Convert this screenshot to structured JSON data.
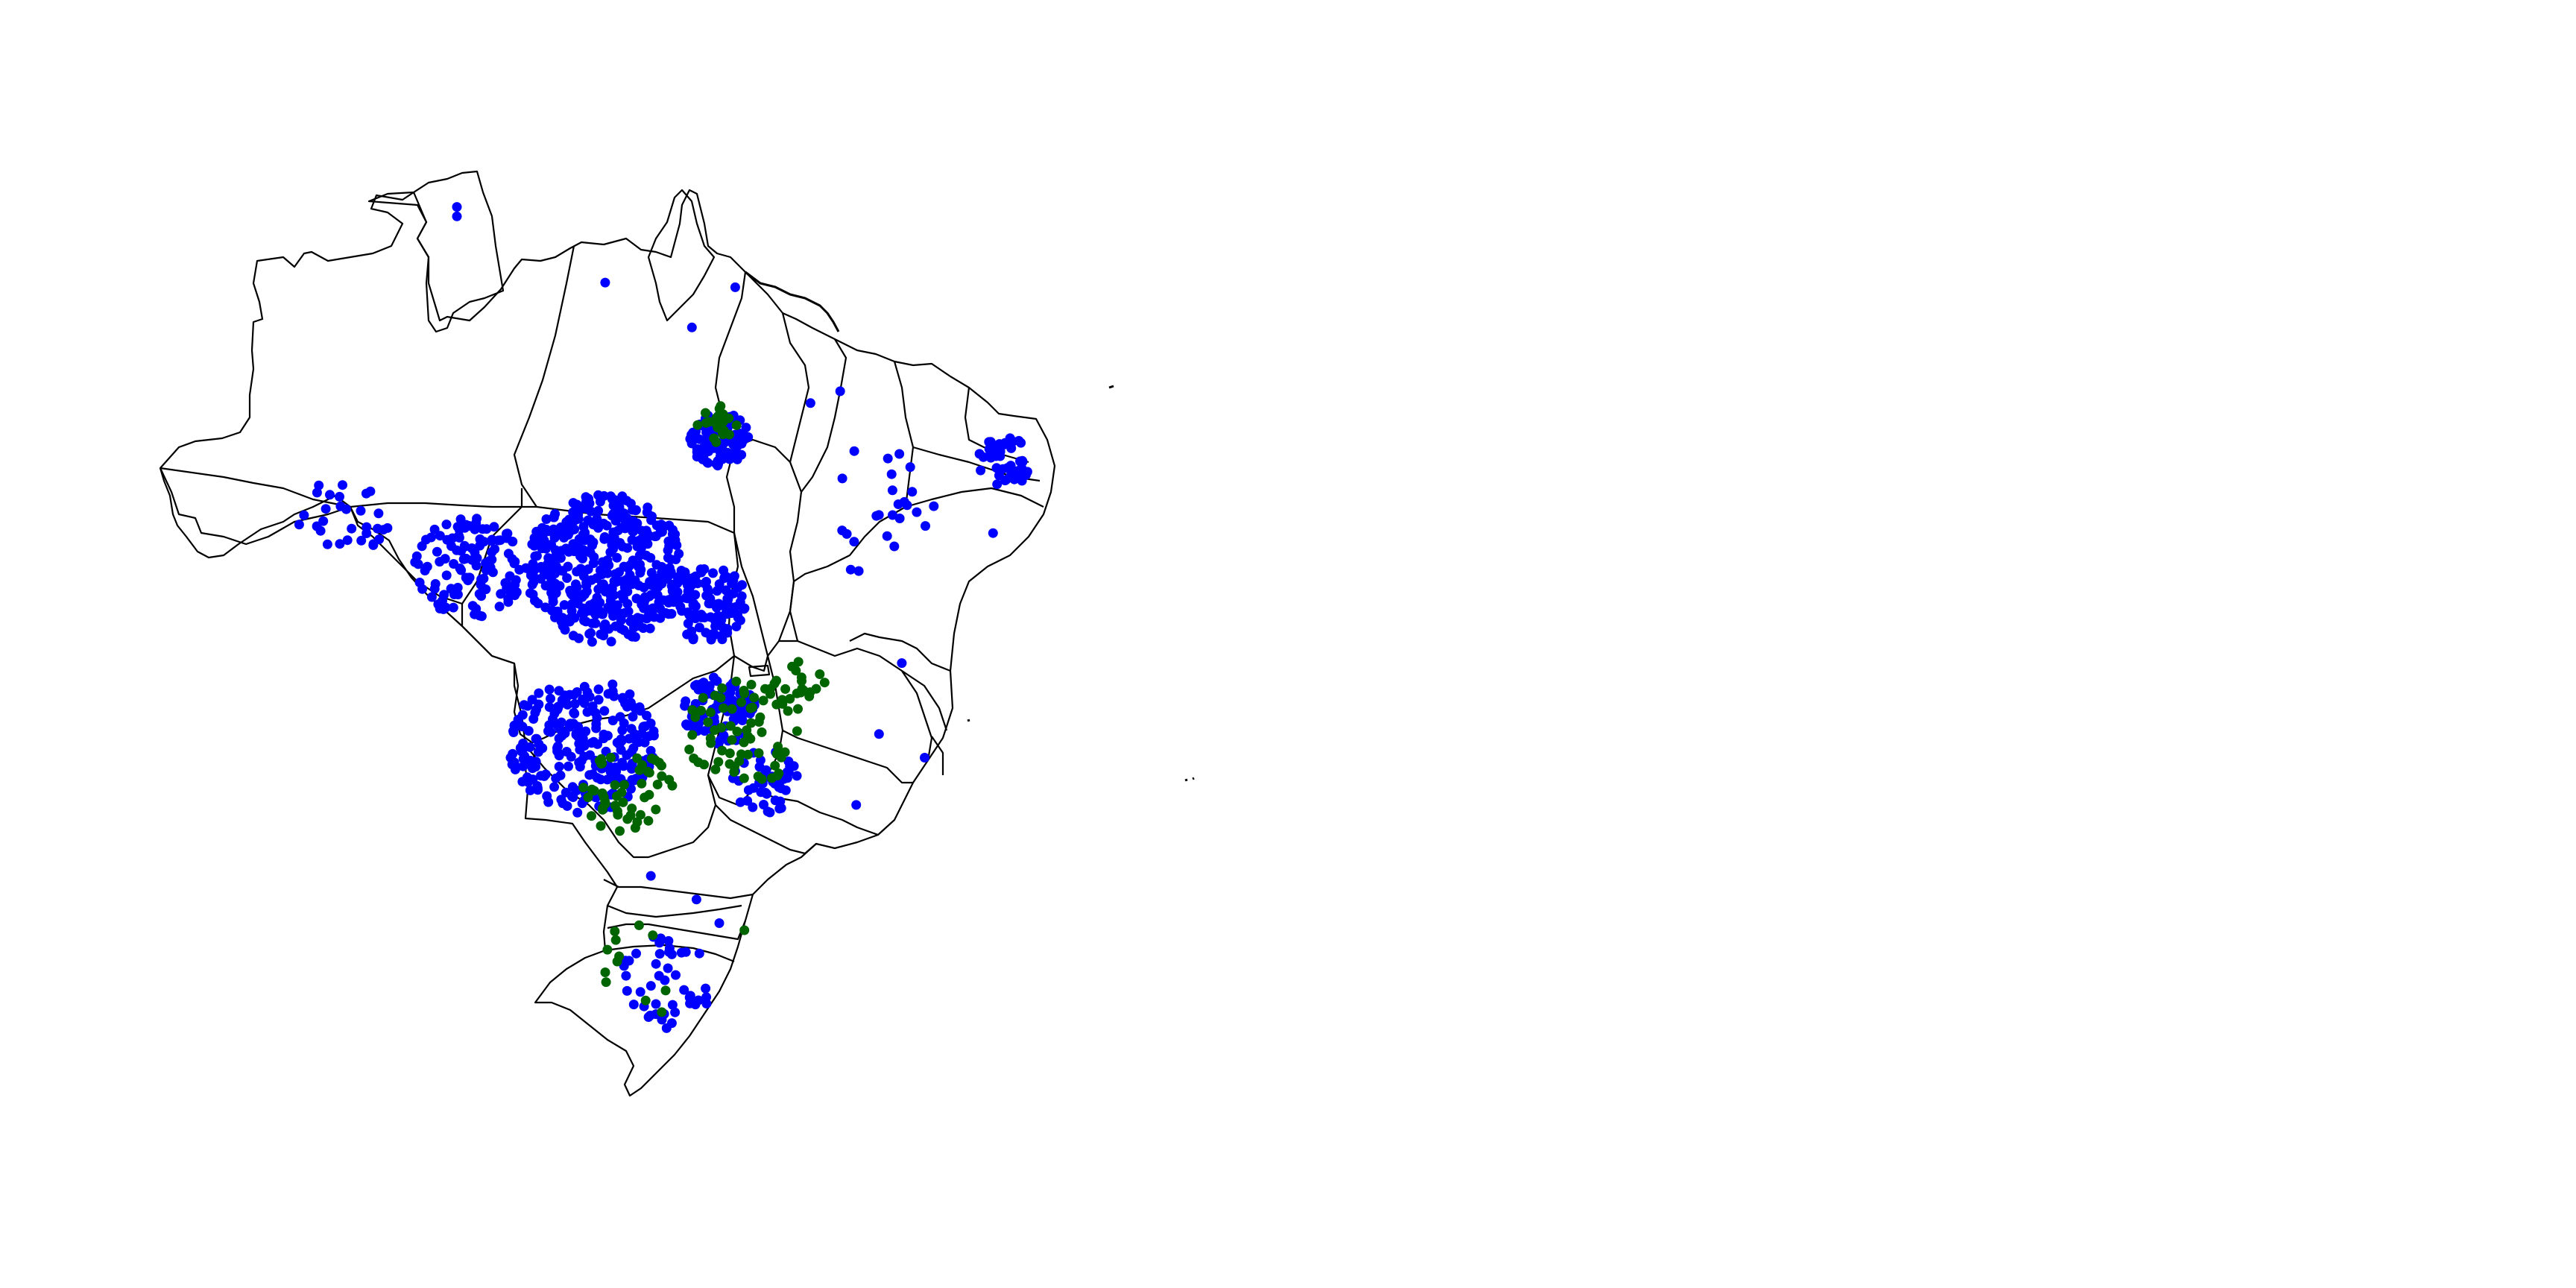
{
  "map": {
    "region": "Brazil",
    "background_color": "#ffffff",
    "border_color": "#000000",
    "series_colors": {
      "blue": "#0000ff",
      "green": "#006400"
    },
    "clusters": [
      {
        "series": "blue",
        "lon": -54.5,
        "lat": -11.5,
        "r": 3.5,
        "n": 420
      },
      {
        "series": "blue",
        "lon": -60.5,
        "lat": -11.5,
        "r": 2.4,
        "n": 120
      },
      {
        "series": "blue",
        "lon": -55.5,
        "lat": -19.0,
        "r": 3.2,
        "n": 240
      },
      {
        "series": "blue",
        "lon": -49.5,
        "lat": -6.0,
        "r": 1.3,
        "n": 90
      },
      {
        "series": "blue",
        "lon": -50.0,
        "lat": -13.0,
        "r": 1.8,
        "n": 110
      },
      {
        "series": "blue",
        "lon": -49.5,
        "lat": -17.5,
        "r": 1.6,
        "n": 90
      },
      {
        "series": "blue",
        "lon": -37.0,
        "lat": -7.0,
        "r": 1.2,
        "n": 45
      },
      {
        "series": "blue",
        "lon": -52.0,
        "lat": -29.0,
        "r": 2.2,
        "n": 45
      },
      {
        "series": "blue",
        "lon": -66.0,
        "lat": -9.5,
        "r": 2.0,
        "n": 30
      },
      {
        "series": "blue",
        "lon": -47.5,
        "lat": -20.5,
        "r": 1.5,
        "n": 45
      },
      {
        "series": "blue",
        "lon": -43.0,
        "lat": -9.0,
        "r": 3.0,
        "n": 25
      },
      {
        "series": "green",
        "lon": -48.5,
        "lat": -18.5,
        "r": 2.5,
        "n": 70
      },
      {
        "series": "green",
        "lon": -53.5,
        "lat": -21.0,
        "r": 2.0,
        "n": 50
      },
      {
        "series": "green",
        "lon": -49.5,
        "lat": -5.5,
        "r": 1.0,
        "n": 20
      },
      {
        "series": "green",
        "lon": -53.0,
        "lat": -28.5,
        "r": 2.2,
        "n": 12
      },
      {
        "series": "green",
        "lon": -46.0,
        "lat": -16.5,
        "r": 1.2,
        "n": 20
      }
    ],
    "isolated_points": [
      {
        "series": "blue",
        "lon": -61.0,
        "lat": 3.8
      },
      {
        "series": "blue",
        "lon": -61.0,
        "lat": 3.4
      },
      {
        "series": "blue",
        "lon": -54.5,
        "lat": 0.6
      },
      {
        "series": "blue",
        "lon": -50.7,
        "lat": -1.3
      },
      {
        "series": "blue",
        "lon": -48.8,
        "lat": 0.4
      },
      {
        "series": "blue",
        "lon": -44.2,
        "lat": -4.0
      },
      {
        "series": "blue",
        "lon": -45.5,
        "lat": -4.5
      },
      {
        "series": "blue",
        "lon": -41.5,
        "lat": -15.5
      },
      {
        "series": "blue",
        "lon": -42.5,
        "lat": -18.5
      },
      {
        "series": "blue",
        "lon": -40.5,
        "lat": -19.5
      },
      {
        "series": "blue",
        "lon": -43.5,
        "lat": -21.5
      },
      {
        "series": "blue",
        "lon": -52.5,
        "lat": -24.5
      },
      {
        "series": "blue",
        "lon": -50.5,
        "lat": -25.5
      },
      {
        "series": "blue",
        "lon": -49.5,
        "lat": -26.5
      },
      {
        "series": "blue",
        "lon": -37.5,
        "lat": -10.0
      },
      {
        "series": "green",
        "lon": -48.4,
        "lat": -26.8
      }
    ]
  }
}
